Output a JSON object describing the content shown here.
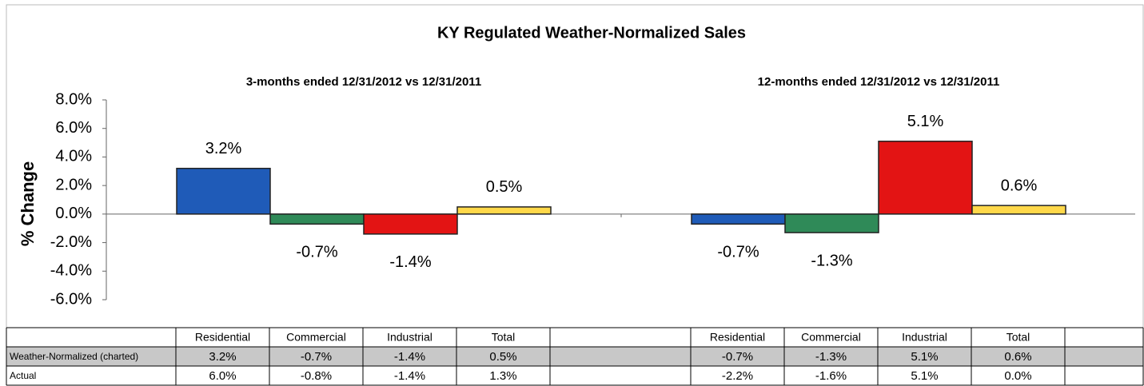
{
  "chart_data": {
    "type": "bar",
    "title": "KY Regulated Weather-Normalized Sales",
    "y_label": "% Change",
    "categories": [
      "Residential",
      "Commercial",
      "Industrial",
      "Total"
    ],
    "colors": [
      "#1f5bb8",
      "#2f8a58",
      "#e31414",
      "#ffd84a"
    ],
    "groups": [
      {
        "title": "3-months ended 12/31/2012 vs 12/31/2011",
        "values": [
          3.2,
          -0.7,
          -1.4,
          0.5
        ],
        "value_labels": [
          "3.2%",
          "-0.7%",
          "-1.4%",
          "0.5%"
        ]
      },
      {
        "title": "12-months ended 12/31/2012 vs 12/31/2011",
        "values": [
          -0.7,
          -1.3,
          5.1,
          0.6
        ],
        "value_labels": [
          "-0.7%",
          "-1.3%",
          "5.1%",
          "0.6%"
        ]
      }
    ],
    "ylim": [
      -6,
      8
    ],
    "yticks": [
      {
        "value": -6,
        "label": "-6.0%"
      },
      {
        "value": -4,
        "label": "-4.0%"
      },
      {
        "value": -2,
        "label": "-2.0%"
      },
      {
        "value": 0,
        "label": "0.0%"
      },
      {
        "value": 2,
        "label": "2.0%"
      },
      {
        "value": 4,
        "label": "4.0%"
      },
      {
        "value": 6,
        "label": "6.0%"
      },
      {
        "value": 8,
        "label": "8.0%"
      }
    ]
  },
  "table": {
    "row_labels": [
      "Weather-Normalized (charted)",
      "Actual"
    ],
    "actual": [
      [
        "6.0%",
        "-0.8%",
        "-1.4%",
        "1.3%"
      ],
      [
        "-2.2%",
        "-1.6%",
        "5.1%",
        "0.0%"
      ]
    ]
  }
}
